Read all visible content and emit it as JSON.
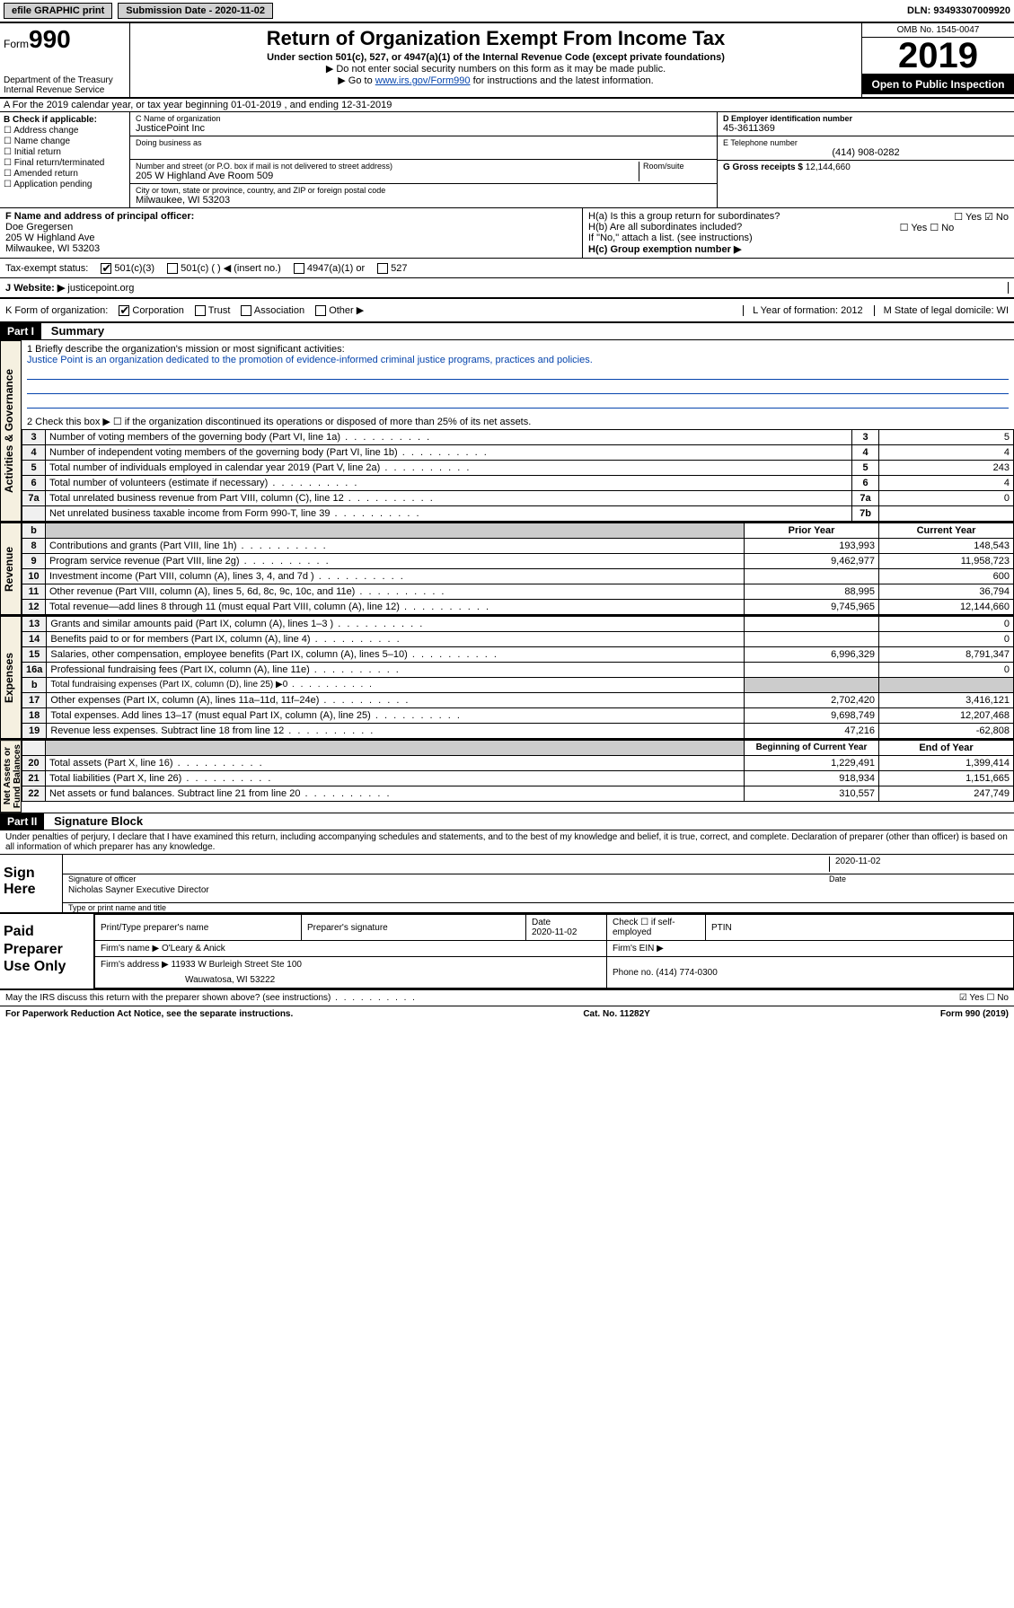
{
  "topbar": {
    "efile": "efile GRAPHIC print",
    "sub_label": "Submission Date - 2020-11-02",
    "dln": "DLN: 93493307009920"
  },
  "header": {
    "form_word": "Form",
    "form_num": "990",
    "dept": "Department of the Treasury",
    "irs": "Internal Revenue Service",
    "title": "Return of Organization Exempt From Income Tax",
    "sub": "Under section 501(c), 527, or 4947(a)(1) of the Internal Revenue Code (except private foundations)",
    "note1": "▶ Do not enter social security numbers on this form as it may be made public.",
    "note2_pre": "▶ Go to ",
    "note2_link": "www.irs.gov/Form990",
    "note2_post": " for instructions and the latest information.",
    "omb": "OMB No. 1545-0047",
    "year": "2019",
    "open": "Open to Public Inspection"
  },
  "row_a": "A For the 2019 calendar year, or tax year beginning 01-01-2019    , and ending 12-31-2019",
  "col_b": {
    "hdr": "B Check if applicable:",
    "items": [
      "☐ Address change",
      "☐ Name change",
      "☐ Initial return",
      "☐ Final return/terminated",
      "☐ Amended return",
      "☐ Application pending"
    ]
  },
  "col_c": {
    "name_lbl": "C Name of organization",
    "name": "JusticePoint Inc",
    "dba_lbl": "Doing business as",
    "dba": "",
    "addr_lbl": "Number and street (or P.O. box if mail is not delivered to street address)",
    "addr": "205 W Highland Ave Room 509",
    "room_lbl": "Room/suite",
    "city_lbl": "City or town, state or province, country, and ZIP or foreign postal code",
    "city": "Milwaukee, WI  53203"
  },
  "col_d": {
    "ein_lbl": "D Employer identification number",
    "ein": "45-3611369",
    "tel_lbl": "E Telephone number",
    "tel": "(414) 908-0282",
    "gross_lbl": "G Gross receipts $",
    "gross": "12,144,660"
  },
  "f_block": {
    "lbl": "F Name and address of principal officer:",
    "name": "Doe Gregersen",
    "addr": "205 W Highland Ave",
    "city": "Milwaukee, WI  53203"
  },
  "h_block": {
    "ha": "H(a) Is this a group return for subordinates?",
    "ha_yes": "☐ Yes  ☑ No",
    "hb": "H(b) Are all subordinates included?",
    "hb_yn": "☐ Yes  ☐ No",
    "hb_note": "If \"No,\" attach a list. (see instructions)",
    "hc": "H(c) Group exemption number ▶"
  },
  "tax_status": {
    "lbl": "Tax-exempt status:",
    "c3": "501(c)(3)",
    "c": "501(c) (  ) ◀ (insert no.)",
    "a1": "4947(a)(1) or",
    "s527": "527"
  },
  "website": {
    "j": "J",
    "lbl": "Website: ▶",
    "val": "justicepoint.org"
  },
  "k_row": {
    "lbl": "K Form of organization:",
    "corp": "Corporation",
    "trust": "Trust",
    "assoc": "Association",
    "other": "Other ▶",
    "l": "L Year of formation: 2012",
    "m": "M State of legal domicile: WI"
  },
  "part1": {
    "hdr": "Part I",
    "title": "Summary",
    "q1_lbl": "1  Briefly describe the organization's mission or most significant activities:",
    "q1_val": "Justice Point is an organization dedicated to the promotion of evidence-informed criminal justice programs, practices and policies.",
    "q2": "2   Check this box ▶ ☐  if the organization discontinued its operations or disposed of more than 25% of its net assets.",
    "rows_ag": [
      {
        "n": "3",
        "t": "Number of voting members of the governing body (Part VI, line 1a)",
        "box": "3",
        "v": "5"
      },
      {
        "n": "4",
        "t": "Number of independent voting members of the governing body (Part VI, line 1b)",
        "box": "4",
        "v": "4"
      },
      {
        "n": "5",
        "t": "Total number of individuals employed in calendar year 2019 (Part V, line 2a)",
        "box": "5",
        "v": "243"
      },
      {
        "n": "6",
        "t": "Total number of volunteers (estimate if necessary)",
        "box": "6",
        "v": "4"
      },
      {
        "n": "7a",
        "t": "Total unrelated business revenue from Part VIII, column (C), line 12",
        "box": "7a",
        "v": "0"
      },
      {
        "n": "",
        "t": "Net unrelated business taxable income from Form 990-T, line 39",
        "box": "7b",
        "v": ""
      }
    ],
    "col_hdrs": {
      "b": "b",
      "prior": "Prior Year",
      "curr": "Current Year"
    },
    "revenue": [
      {
        "n": "8",
        "t": "Contributions and grants (Part VIII, line 1h)",
        "p": "193,993",
        "c": "148,543"
      },
      {
        "n": "9",
        "t": "Program service revenue (Part VIII, line 2g)",
        "p": "9,462,977",
        "c": "11,958,723"
      },
      {
        "n": "10",
        "t": "Investment income (Part VIII, column (A), lines 3, 4, and 7d )",
        "p": "",
        "c": "600"
      },
      {
        "n": "11",
        "t": "Other revenue (Part VIII, column (A), lines 5, 6d, 8c, 9c, 10c, and 11e)",
        "p": "88,995",
        "c": "36,794"
      },
      {
        "n": "12",
        "t": "Total revenue—add lines 8 through 11 (must equal Part VIII, column (A), line 12)",
        "p": "9,745,965",
        "c": "12,144,660"
      }
    ],
    "expenses": [
      {
        "n": "13",
        "t": "Grants and similar amounts paid (Part IX, column (A), lines 1–3 )",
        "p": "",
        "c": "0"
      },
      {
        "n": "14",
        "t": "Benefits paid to or for members (Part IX, column (A), line 4)",
        "p": "",
        "c": "0"
      },
      {
        "n": "15",
        "t": "Salaries, other compensation, employee benefits (Part IX, column (A), lines 5–10)",
        "p": "6,996,329",
        "c": "8,791,347"
      },
      {
        "n": "16a",
        "t": "Professional fundraising fees (Part IX, column (A), line 11e)",
        "p": "",
        "c": "0"
      },
      {
        "n": "b",
        "t": "Total fundraising expenses (Part IX, column (D), line 25) ▶0",
        "p": "gray",
        "c": "gray"
      },
      {
        "n": "17",
        "t": "Other expenses (Part IX, column (A), lines 11a–11d, 11f–24e)",
        "p": "2,702,420",
        "c": "3,416,121"
      },
      {
        "n": "18",
        "t": "Total expenses. Add lines 13–17 (must equal Part IX, column (A), line 25)",
        "p": "9,698,749",
        "c": "12,207,468"
      },
      {
        "n": "19",
        "t": "Revenue less expenses. Subtract line 18 from line 12",
        "p": "47,216",
        "c": "-62,808"
      }
    ],
    "na_hdrs": {
      "boy": "Beginning of Current Year",
      "eoy": "End of Year"
    },
    "netassets": [
      {
        "n": "20",
        "t": "Total assets (Part X, line 16)",
        "p": "1,229,491",
        "c": "1,399,414"
      },
      {
        "n": "21",
        "t": "Total liabilities (Part X, line 26)",
        "p": "918,934",
        "c": "1,151,665"
      },
      {
        "n": "22",
        "t": "Net assets or fund balances. Subtract line 21 from line 20",
        "p": "310,557",
        "c": "247,749"
      }
    ]
  },
  "part2": {
    "hdr": "Part II",
    "title": "Signature Block",
    "perjury": "Under penalties of perjury, I declare that I have examined this return, including accompanying schedules and statements, and to the best of my knowledge and belief, it is true, correct, and complete. Declaration of preparer (other than officer) is based on all information of which preparer has any knowledge.",
    "sign_here": "Sign Here",
    "sig_date": "2020-11-02",
    "sig_officer": "Signature of officer",
    "date_lbl": "Date",
    "officer_name": "Nicholas Sayner  Executive Director",
    "type_name": "Type or print name and title",
    "paid": "Paid Preparer Use Only",
    "prep_name_lbl": "Print/Type preparer's name",
    "prep_sig_lbl": "Preparer's signature",
    "prep_date": "Date\n2020-11-02",
    "self_emp": "Check ☐ if self-employed",
    "ptin": "PTIN",
    "firm_name_lbl": "Firm's name    ▶",
    "firm_name": "O'Leary & Anick",
    "firm_ein": "Firm's EIN ▶",
    "firm_addr_lbl": "Firm's address ▶",
    "firm_addr": "11933 W Burleigh Street Ste 100",
    "firm_city": "Wauwatosa, WI  53222",
    "phone_lbl": "Phone no.",
    "phone": "(414) 774-0300"
  },
  "footer": {
    "discuss": "May the IRS discuss this return with the preparer shown above? (see instructions)",
    "yn": "☑ Yes   ☐ No",
    "pra": "For Paperwork Reduction Act Notice, see the separate instructions.",
    "cat": "Cat. No. 11282Y",
    "form": "Form 990 (2019)"
  }
}
